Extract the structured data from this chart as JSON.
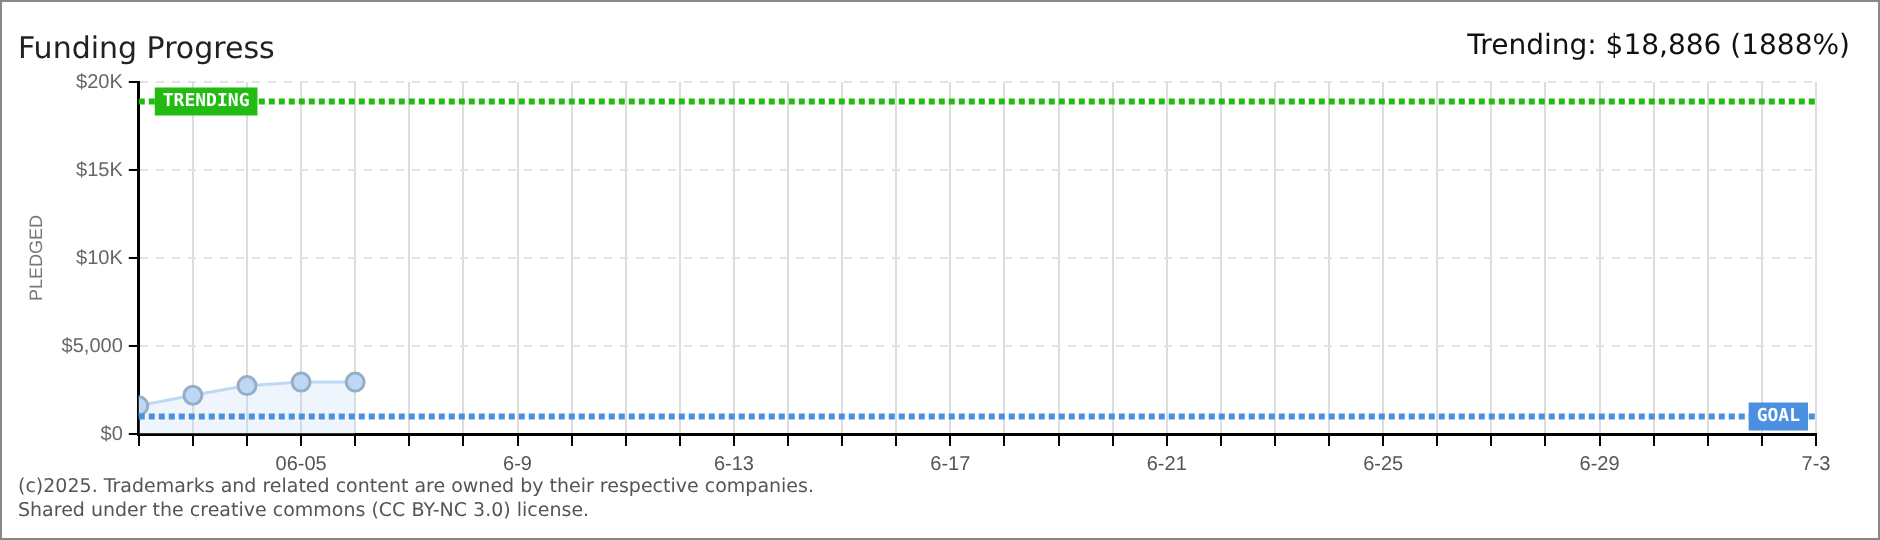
{
  "chart_data": {
    "type": "area",
    "title": "Funding Progress",
    "subtitle": "Trending: $18,886 (1888%)",
    "ylabel": "PLEDGED",
    "annotations": [
      "(c)2025. Trademarks and related content are owned by their respective companies.",
      "Shared under the creative commons (CC BY-NC 3.0) license."
    ],
    "x": [
      "--06-02",
      "--06-03",
      "--06-04",
      "--06-05",
      "--06-06"
    ],
    "series": [
      {
        "color": "#bcd8f5",
        "values": [
          1600,
          2200,
          2750,
          2950,
          2950
        ]
      }
    ],
    "xlim": [
      "--06-02",
      "--07-03"
    ],
    "xticks": [
      {
        "value": "--06-02",
        "label": null
      },
      {
        "value": "--06-03",
        "label": null
      },
      {
        "value": "--06-04",
        "label": null
      },
      {
        "value": "--06-05",
        "label": "06-05"
      },
      {
        "value": "--06-06",
        "label": null
      },
      {
        "value": "--06-07",
        "label": null
      },
      {
        "value": "--06-08",
        "label": null
      },
      {
        "value": "--06-09",
        "label": "6-9"
      },
      {
        "value": "--06-10",
        "label": null
      },
      {
        "value": "--06-11",
        "label": null
      },
      {
        "value": "--06-12",
        "label": null
      },
      {
        "value": "--06-13",
        "label": "6-13"
      },
      {
        "value": "--06-14",
        "label": null
      },
      {
        "value": "--06-15",
        "label": null
      },
      {
        "value": "--06-16",
        "label": null
      },
      {
        "value": "--06-17",
        "label": "6-17"
      },
      {
        "value": "--06-18",
        "label": null
      },
      {
        "value": "--06-19",
        "label": null
      },
      {
        "value": "--06-20",
        "label": null
      },
      {
        "value": "--06-21",
        "label": "6-21"
      },
      {
        "value": "--06-22",
        "label": null
      },
      {
        "value": "--06-23",
        "label": null
      },
      {
        "value": "--06-24",
        "label": null
      },
      {
        "value": "--06-25",
        "label": "6-25"
      },
      {
        "value": "--06-26",
        "label": null
      },
      {
        "value": "--06-27",
        "label": null
      },
      {
        "value": "--06-28",
        "label": null
      },
      {
        "value": "--06-29",
        "label": "6-29"
      },
      {
        "value": "--06-30",
        "label": null
      },
      {
        "value": "--07-01",
        "label": null
      },
      {
        "value": "--07-02",
        "label": null
      },
      {
        "value": "--07-03",
        "label": "7-3"
      }
    ],
    "ylim": [
      0,
      20000
    ],
    "yticks": [
      {
        "value": 0,
        "label": "$0"
      },
      {
        "value": 5000,
        "label": "$5,000"
      },
      {
        "value": 10000,
        "label": "$10K"
      },
      {
        "value": 15000,
        "label": "$15K"
      },
      {
        "value": 20000,
        "label": "$20K"
      }
    ],
    "ref_lines": [
      {
        "axis": "y",
        "value": 18886,
        "label": "TRENDING",
        "color": "#22bb11",
        "line_style": "dotted"
      },
      {
        "axis": "y",
        "value": 1000,
        "label": "GOAL",
        "color": "#4a8fe0",
        "line_style": "dotted"
      }
    ],
    "grid": true,
    "legend": false,
    "marker": "circle",
    "line_style": "solid"
  }
}
